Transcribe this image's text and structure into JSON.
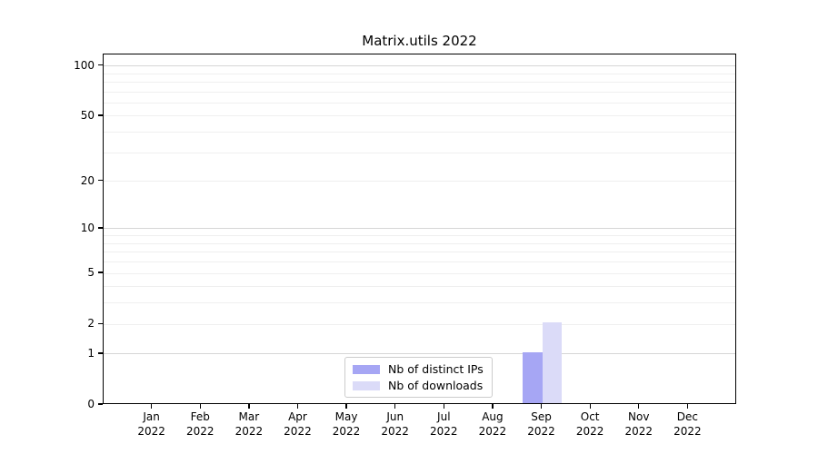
{
  "chart_data": {
    "type": "bar",
    "title": "Matrix.utils 2022",
    "x_ticks": [
      {
        "month": "Jan",
        "year": "2022"
      },
      {
        "month": "Feb",
        "year": "2022"
      },
      {
        "month": "Mar",
        "year": "2022"
      },
      {
        "month": "Apr",
        "year": "2022"
      },
      {
        "month": "May",
        "year": "2022"
      },
      {
        "month": "Jun",
        "year": "2022"
      },
      {
        "month": "Jul",
        "year": "2022"
      },
      {
        "month": "Aug",
        "year": "2022"
      },
      {
        "month": "Sep",
        "year": "2022"
      },
      {
        "month": "Oct",
        "year": "2022"
      },
      {
        "month": "Nov",
        "year": "2022"
      },
      {
        "month": "Dec",
        "year": "2022"
      }
    ],
    "series": [
      {
        "name": "Nb of distinct IPs",
        "color": "#a6a6f4",
        "values": [
          0,
          0,
          0,
          0,
          0,
          0,
          0,
          0,
          1,
          0,
          0,
          0
        ]
      },
      {
        "name": "Nb of downloads",
        "color": "#dbdbf8",
        "values": [
          0,
          0,
          0,
          0,
          0,
          0,
          0,
          0,
          2,
          0,
          0,
          0
        ]
      }
    ],
    "y_scale": "log1p",
    "ylim": [
      0,
      117
    ],
    "y_ticks_labeled": [
      0,
      1,
      2,
      5,
      10,
      20,
      50,
      100
    ],
    "y_grid_major": [
      1,
      10,
      100
    ],
    "y_grid_minor": [
      2,
      3,
      4,
      5,
      6,
      7,
      8,
      9,
      20,
      30,
      40,
      50,
      60,
      70,
      80,
      90
    ],
    "grid": true,
    "legend_position": "lower center",
    "colors": {
      "grid_major": "#d6d6d6",
      "grid_minor": "#efefef",
      "axis": "#000000",
      "legend_border": "#cccccc",
      "text": "#000000"
    }
  }
}
